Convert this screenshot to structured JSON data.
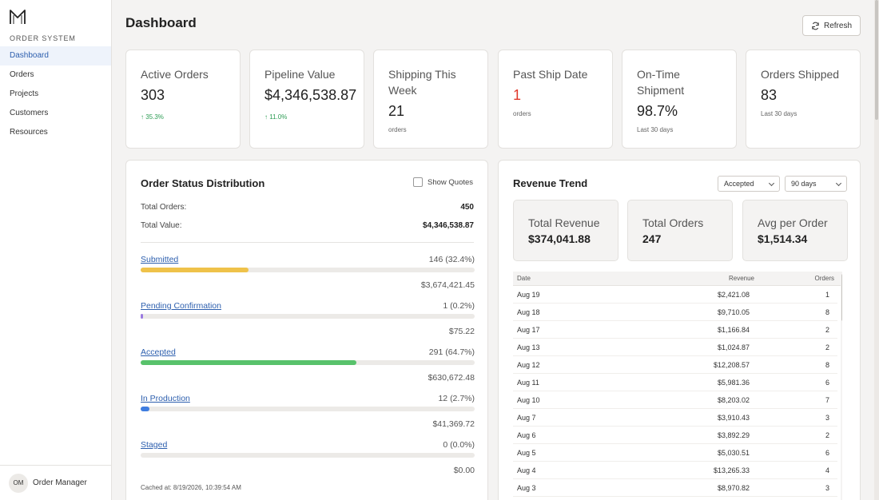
{
  "sidebar": {
    "brand": "ORDER SYSTEM",
    "items": [
      {
        "label": "Dashboard",
        "active": true
      },
      {
        "label": "Orders"
      },
      {
        "label": "Projects"
      },
      {
        "label": "Customers"
      },
      {
        "label": "Resources"
      }
    ],
    "user": {
      "initials": "OM",
      "name": "Order Manager"
    }
  },
  "header": {
    "title": "Dashboard",
    "refresh_label": "Refresh"
  },
  "kpis": [
    {
      "title": "Active Orders",
      "value": "303",
      "trend": "↑ 35.3%"
    },
    {
      "title": "Pipeline Value",
      "value": "$4,346,538.87",
      "trend": "↑ 11.0%"
    },
    {
      "title": "Shipping This Week",
      "value": "21",
      "sub": "orders"
    },
    {
      "title": "Past Ship Date",
      "value": "1",
      "sub": "orders",
      "value_color": "#e0392b"
    },
    {
      "title": "On-Time Shipment",
      "value": "98.7%",
      "sub": "Last 30 days"
    },
    {
      "title": "Orders Shipped",
      "value": "83",
      "sub": "Last 30 days"
    }
  ],
  "status_distribution": {
    "title": "Order Status Distribution",
    "show_quotes_label": "Show Quotes",
    "show_quotes_checked": false,
    "total_orders_label": "Total Orders:",
    "total_orders": "450",
    "total_value_label": "Total Value:",
    "total_value": "$4,346,538.87",
    "statuses": [
      {
        "name": "Submitted",
        "count": "146 (32.4%)",
        "amount": "$3,674,421.45",
        "fraction": 0.324,
        "color": "#efc24a"
      },
      {
        "name": "Pending Confirmation",
        "count": "1 (0.2%)",
        "amount": "$75.22",
        "fraction": 0.002,
        "color": "#9b7be0"
      },
      {
        "name": "Accepted",
        "count": "291 (64.7%)",
        "amount": "$630,672.48",
        "fraction": 0.647,
        "color": "#58c26b"
      },
      {
        "name": "In Production",
        "count": "12 (2.7%)",
        "amount": "$41,369.72",
        "fraction": 0.027,
        "color": "#3f7de0"
      },
      {
        "name": "Staged",
        "count": "0 (0.0%)",
        "amount": "$0.00",
        "fraction": 0.0,
        "color": "#8a8a8a"
      }
    ],
    "cached_at": "Cached at: 8/19/2026, 10:39:54 AM"
  },
  "revenue_trend": {
    "title": "Revenue Trend",
    "status_filter": "Accepted",
    "range_filter": "90 days",
    "summary": [
      {
        "label": "Total Revenue",
        "value": "$374,041.88"
      },
      {
        "label": "Total Orders",
        "value": "247"
      },
      {
        "label": "Avg per Order",
        "value": "$1,514.34"
      }
    ],
    "columns": [
      "Date",
      "Revenue",
      "Orders"
    ],
    "rows": [
      {
        "date": "Aug 19",
        "revenue": "$2,421.08",
        "orders": "1"
      },
      {
        "date": "Aug 18",
        "revenue": "$9,710.05",
        "orders": "8"
      },
      {
        "date": "Aug 17",
        "revenue": "$1,166.84",
        "orders": "2"
      },
      {
        "date": "Aug 13",
        "revenue": "$1,024.87",
        "orders": "2"
      },
      {
        "date": "Aug 12",
        "revenue": "$12,208.57",
        "orders": "8"
      },
      {
        "date": "Aug 11",
        "revenue": "$5,981.36",
        "orders": "6"
      },
      {
        "date": "Aug 10",
        "revenue": "$8,203.02",
        "orders": "7"
      },
      {
        "date": "Aug 7",
        "revenue": "$3,910.43",
        "orders": "3"
      },
      {
        "date": "Aug 6",
        "revenue": "$3,892.29",
        "orders": "2"
      },
      {
        "date": "Aug 5",
        "revenue": "$5,030.51",
        "orders": "6"
      },
      {
        "date": "Aug 4",
        "revenue": "$13,265.33",
        "orders": "4"
      },
      {
        "date": "Aug 3",
        "revenue": "$8,970.82",
        "orders": "3"
      }
    ]
  }
}
